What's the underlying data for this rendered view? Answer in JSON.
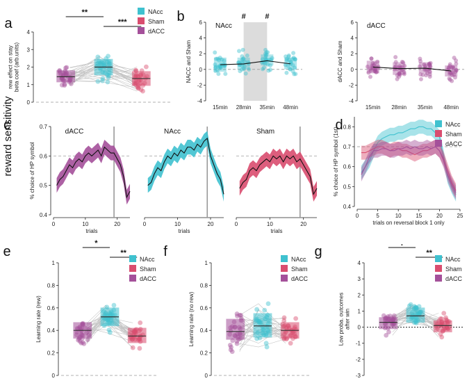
{
  "colors": {
    "nacc": "#3fc1cf",
    "sham": "#d94d6f",
    "dacc": "#a4509a",
    "grey": "#c4c4c4"
  },
  "side_label": "reward sensitivity",
  "chart_data": [
    {
      "id": "a",
      "panel_label": "a",
      "type": "box-strip",
      "ylabel_lines": [
        "rew effect on stay",
        "beta coef (arb.units)"
      ],
      "ylim": [
        0,
        4
      ],
      "yticks": [
        "0",
        "1",
        "2",
        "3",
        "4"
      ],
      "groups": [
        "dACC",
        "NAcc",
        "Sham"
      ],
      "medians": [
        1.45,
        2.0,
        1.35
      ],
      "boxes": [
        [
          1.15,
          1.8
        ],
        [
          1.55,
          2.45
        ],
        [
          0.95,
          1.75
        ]
      ],
      "legend": [
        "NAcc",
        "Sham",
        "dACC"
      ],
      "significance": [
        {
          "label": "**",
          "from": "dACC",
          "to": "NAcc"
        },
        {
          "label": "***",
          "from": "NAcc",
          "to": "Sham"
        }
      ]
    },
    {
      "id": "b1",
      "panel_label": "b",
      "type": "point-range",
      "title": "NAcc",
      "ylabel": "NACC and Sham",
      "ylim": [
        -4,
        6
      ],
      "yticks": [
        "-4",
        "-2",
        "0",
        "2",
        "4",
        "6"
      ],
      "categories": [
        "15min",
        "28min",
        "35min",
        "48min"
      ],
      "values": [
        0.6,
        0.7,
        1.1,
        0.7
      ],
      "cis": [
        [
          -0.3,
          1.5
        ],
        [
          0.0,
          1.5
        ],
        [
          0.5,
          1.9
        ],
        [
          0.0,
          1.5
        ]
      ],
      "markers": [
        "#",
        "#"
      ],
      "shaded_window": [
        "28min",
        "35min"
      ]
    },
    {
      "id": "b2",
      "type": "point-range",
      "title": "dACC",
      "ylabel": "dACC and Sham",
      "ylim": [
        -4,
        6
      ],
      "yticks": [
        "-4",
        "-2",
        "0",
        "2",
        "4",
        "6"
      ],
      "categories": [
        "15min",
        "28min",
        "35min",
        "48min"
      ],
      "values": [
        0.3,
        0.1,
        0.15,
        -0.2
      ],
      "cis": [
        [
          -0.5,
          1.1
        ],
        [
          -0.7,
          0.9
        ],
        [
          -0.5,
          0.9
        ],
        [
          -0.9,
          0.5
        ]
      ]
    },
    {
      "id": "c1",
      "panel_label": "c",
      "type": "line-band",
      "title": "dACC",
      "ylabel": "% choice of HP symbol",
      "xlabel": "trials",
      "xlim": [
        0,
        24
      ],
      "ylim": [
        0.4,
        0.7
      ],
      "yticks": [
        "0.4",
        "0.5",
        "0.6",
        "0.7"
      ],
      "xticks": [
        "0",
        "10",
        "20"
      ],
      "reference": 0.6,
      "reversal": 19,
      "x": [
        1,
        2,
        3,
        4,
        5,
        6,
        7,
        8,
        9,
        10,
        11,
        12,
        13,
        14,
        15,
        16,
        17,
        18,
        19,
        20,
        21,
        22,
        23,
        24
      ],
      "values": [
        0.5,
        0.52,
        0.53,
        0.55,
        0.57,
        0.56,
        0.58,
        0.59,
        0.58,
        0.6,
        0.61,
        0.6,
        0.61,
        0.62,
        0.6,
        0.63,
        0.62,
        0.61,
        0.61,
        0.59,
        0.57,
        0.53,
        0.46,
        0.48
      ],
      "band": 0.025
    },
    {
      "id": "c2",
      "type": "line-band",
      "title": "NAcc",
      "xlabel": "trials",
      "xlim": [
        0,
        24
      ],
      "ylim": [
        0.4,
        0.7
      ],
      "xticks": [
        "0",
        "10",
        "20"
      ],
      "reference": 0.6,
      "reversal": 19,
      "x": [
        1,
        2,
        3,
        4,
        5,
        6,
        7,
        8,
        9,
        10,
        11,
        12,
        13,
        14,
        15,
        16,
        17,
        18,
        19,
        20,
        21,
        22,
        23,
        24
      ],
      "values": [
        0.5,
        0.51,
        0.54,
        0.56,
        0.55,
        0.58,
        0.6,
        0.59,
        0.61,
        0.6,
        0.62,
        0.61,
        0.63,
        0.63,
        0.62,
        0.64,
        0.63,
        0.65,
        0.66,
        0.6,
        0.57,
        0.54,
        0.52,
        0.47
      ],
      "band": 0.025
    },
    {
      "id": "c3",
      "type": "line-band",
      "title": "Sham",
      "xlabel": "trials",
      "xlim": [
        0,
        24
      ],
      "ylim": [
        0.4,
        0.7
      ],
      "xticks": [
        "0",
        "10",
        "20"
      ],
      "reference": 0.6,
      "reversal": 19,
      "x": [
        1,
        2,
        3,
        4,
        5,
        6,
        7,
        8,
        9,
        10,
        11,
        12,
        13,
        14,
        15,
        16,
        17,
        18,
        19,
        20,
        21,
        22,
        23,
        24
      ],
      "values": [
        0.49,
        0.51,
        0.52,
        0.55,
        0.56,
        0.55,
        0.57,
        0.58,
        0.59,
        0.58,
        0.6,
        0.59,
        0.6,
        0.58,
        0.6,
        0.59,
        0.6,
        0.58,
        0.59,
        0.57,
        0.55,
        0.53,
        0.47,
        0.49
      ],
      "band": 0.025
    },
    {
      "id": "d",
      "panel_label": "d",
      "type": "line-band",
      "ylabel": "% choice of HP symbol (1st)",
      "xlabel": "trials on reversal block 1 only",
      "xlim": [
        0,
        25
      ],
      "ylim": [
        0.4,
        0.85
      ],
      "yticks": [
        "0.4",
        "0.5",
        "0.6",
        "0.7",
        "0.8"
      ],
      "xticks": [
        "0",
        "5",
        "10",
        "15",
        "20",
        "25"
      ],
      "reference": 0.7,
      "legend": [
        "NAcc",
        "Sham",
        "dACC"
      ],
      "series": [
        {
          "name": "NAcc",
          "color": "#3fc1cf",
          "band": 0.035,
          "x": [
            1,
            2,
            3,
            4,
            5,
            6,
            7,
            8,
            9,
            10,
            11,
            12,
            13,
            14,
            15,
            16,
            17,
            18,
            19,
            20,
            21,
            22,
            23,
            24
          ],
          "values": [
            0.57,
            0.6,
            0.63,
            0.68,
            0.72,
            0.74,
            0.75,
            0.76,
            0.76,
            0.77,
            0.77,
            0.78,
            0.79,
            0.79,
            0.8,
            0.8,
            0.79,
            0.79,
            0.77,
            0.75,
            0.65,
            0.55,
            0.5,
            0.46
          ]
        },
        {
          "name": "Sham",
          "color": "#d94d6f",
          "band": 0.035,
          "x": [
            1,
            2,
            3,
            4,
            5,
            6,
            7,
            8,
            9,
            10,
            11,
            12,
            13,
            14,
            15,
            16,
            17,
            18,
            19,
            20,
            21,
            22,
            23,
            24
          ],
          "values": [
            0.67,
            0.67,
            0.68,
            0.69,
            0.7,
            0.7,
            0.69,
            0.68,
            0.69,
            0.69,
            0.68,
            0.68,
            0.67,
            0.66,
            0.67,
            0.68,
            0.68,
            0.69,
            0.7,
            0.68,
            0.64,
            0.58,
            0.52,
            0.48
          ]
        },
        {
          "name": "dACC",
          "color": "#a4509a",
          "band": 0.035,
          "x": [
            1,
            2,
            3,
            4,
            5,
            6,
            7,
            8,
            9,
            10,
            11,
            12,
            13,
            14,
            15,
            16,
            17,
            18,
            19,
            20,
            21,
            22,
            23,
            24
          ],
          "values": [
            0.56,
            0.6,
            0.65,
            0.68,
            0.68,
            0.69,
            0.69,
            0.68,
            0.68,
            0.69,
            0.69,
            0.7,
            0.69,
            0.7,
            0.69,
            0.69,
            0.7,
            0.69,
            0.7,
            0.68,
            0.63,
            0.56,
            0.51,
            0.47
          ]
        }
      ]
    },
    {
      "id": "e",
      "panel_label": "e",
      "type": "box-strip",
      "ylabel_lines": [
        "Learning rate (rew)"
      ],
      "ylim": [
        0,
        1
      ],
      "yticks": [
        "0",
        "0.2",
        "0.4",
        "0.6",
        "0.8",
        "1"
      ],
      "groups": [
        "dACC",
        "NAcc",
        "Sham"
      ],
      "medians": [
        0.4,
        0.52,
        0.35
      ],
      "boxes": [
        [
          0.33,
          0.47
        ],
        [
          0.44,
          0.6
        ],
        [
          0.29,
          0.42
        ]
      ],
      "legend": [
        "NAcc",
        "Sham",
        "dACC"
      ],
      "significance": [
        {
          "label": "*",
          "from": "dACC",
          "to": "NAcc"
        },
        {
          "label": "**",
          "from": "NAcc",
          "to": "Sham"
        }
      ]
    },
    {
      "id": "f",
      "panel_label": "f",
      "type": "box-strip",
      "ylabel_lines": [
        "Learning rate (no rew)"
      ],
      "ylim": [
        0,
        1
      ],
      "yticks": [
        "0",
        "0.2",
        "0.4",
        "0.6",
        "0.8",
        "1"
      ],
      "groups": [
        "dACC",
        "NAcc",
        "Sham"
      ],
      "medians": [
        0.39,
        0.44,
        0.4
      ],
      "boxes": [
        [
          0.32,
          0.5
        ],
        [
          0.34,
          0.55
        ],
        [
          0.33,
          0.47
        ]
      ],
      "legend": [
        "NAcc",
        "Sham",
        "dACC"
      ]
    },
    {
      "id": "g",
      "panel_label": "g",
      "type": "box-strip",
      "ylabel_lines": [
        "Low proba. outcomes",
        "after win"
      ],
      "ylim": [
        -3,
        4
      ],
      "yticks": [
        "-3",
        "-2",
        "-1",
        "0",
        "1",
        "2",
        "3",
        "4"
      ],
      "groups": [
        "dACC",
        "NAcc",
        "Sham"
      ],
      "medians": [
        0.3,
        0.7,
        0.1
      ],
      "boxes": [
        [
          -0.1,
          0.6
        ],
        [
          0.3,
          1.2
        ],
        [
          -0.3,
          0.4
        ]
      ],
      "legend": [
        "NAcc",
        "Sham",
        "dACC"
      ],
      "reference": 0,
      "significance": [
        {
          "label": ".",
          "from": "dACC",
          "to": "NAcc"
        },
        {
          "label": "**",
          "from": "NAcc",
          "to": "Sham"
        }
      ]
    }
  ]
}
